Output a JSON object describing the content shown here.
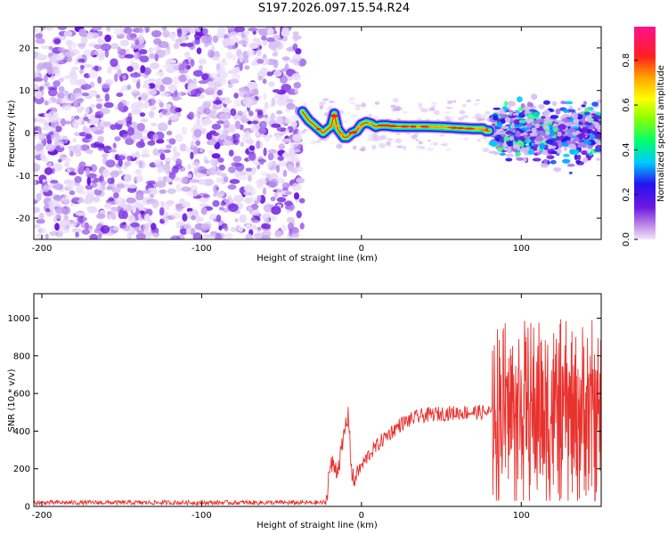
{
  "title": "S197.2026.097.15.54.R24",
  "chart_data": [
    {
      "type": "heatmap",
      "name": "spectrogram",
      "xlabel": "Height of straight line (km)",
      "ylabel": "Frequency (Hz)",
      "xlim": [
        -205,
        150
      ],
      "ylim": [
        -25,
        25
      ],
      "x_ticks": [
        -200,
        -100,
        0,
        100
      ],
      "y_ticks": [
        -20,
        -10,
        0,
        10,
        20
      ],
      "noise_region_x": [
        -205,
        -37
      ],
      "signal_trace": {
        "x": [
          -37,
          -33,
          -30,
          -27,
          -24,
          -21,
          -19,
          -17,
          -15,
          -13,
          -11,
          -9,
          -6,
          -3,
          0,
          3,
          6,
          9,
          12,
          16,
          20,
          30,
          40,
          50,
          60,
          70,
          76,
          78,
          80
        ],
        "y": [
          5,
          3,
          2,
          1,
          0,
          1,
          1.5,
          4.5,
          1,
          0,
          -1,
          -1,
          0,
          0.5,
          2,
          2.5,
          2.2,
          1.5,
          1.8,
          1.8,
          1.6,
          1.5,
          1.5,
          1.4,
          1.2,
          1.0,
          1.0,
          0.5,
          0.5
        ]
      },
      "scatter_region_x": [
        82,
        150
      ],
      "colorbar": {
        "label": "Normalized spectral amplitude",
        "range": [
          0,
          0.95
        ],
        "ticks": [
          "0.0",
          "0.2",
          "0.4",
          "0.6",
          "0.8"
        ]
      }
    },
    {
      "type": "line",
      "name": "snr",
      "xlabel": "Height of straight line (km)",
      "ylabel": "SNR (10 * v/v)",
      "xlim": [
        -205,
        150
      ],
      "ylim": [
        0,
        1130
      ],
      "x_ticks": [
        -200,
        -100,
        0,
        100
      ],
      "y_ticks": [
        0,
        200,
        400,
        600,
        800,
        1000
      ],
      "color": "#e8322e",
      "segments": [
        {
          "x": [
            -205,
            -22
          ],
          "y": [
            20,
            20
          ],
          "noise": 12
        },
        {
          "x": [
            -22,
            -20,
            -18,
            -15,
            -12,
            -10,
            -8,
            -6,
            -4
          ],
          "y": [
            30,
            200,
            220,
            200,
            310,
            430,
            480,
            160,
            120
          ],
          "noise": 60
        },
        {
          "x": [
            -4,
            5,
            15,
            25,
            35,
            45,
            55,
            65,
            75,
            82
          ],
          "y": [
            160,
            280,
            370,
            440,
            475,
            490,
            495,
            500,
            500,
            500
          ],
          "noise": 40
        },
        {
          "x": [
            82,
            95,
            110,
            125,
            140,
            150
          ],
          "y": [
            500,
            500,
            500,
            500,
            500,
            500
          ],
          "noise": 500
        }
      ]
    }
  ]
}
